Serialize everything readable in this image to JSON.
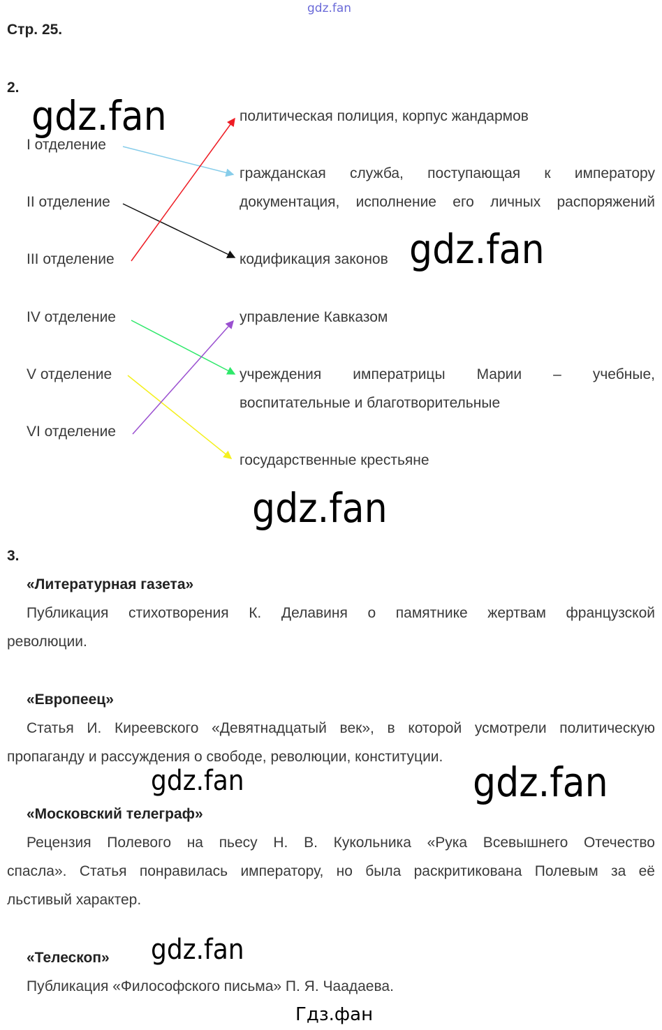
{
  "header": {
    "page_label": "Стр. 25.",
    "watermark_top": "gdz.fan"
  },
  "task2": {
    "number": "2.",
    "left": [
      "I отделение",
      "II отделение",
      "III отделение",
      "IV отделение",
      "V отделение",
      "VI отделение"
    ],
    "right": {
      "r1": "политическая полиция, корпус жандармов",
      "r2_line1": "гражданская служба, поступающая к императору",
      "r2_line2": "документация, исполнение его личных распоряжений",
      "r3": "кодификация законов",
      "r4": "управление Кавказом",
      "r5_line1": "учреждения императрицы Марии – учебные,",
      "r5_line2": "воспитательные и благотворительные",
      "r6": "государственные крестьяне"
    },
    "arrow_colors": {
      "I": "#87cdea",
      "II": "#111111",
      "III": "#ee1c24",
      "IV": "#2ee86a",
      "V": "#f4f01e",
      "VI": "#9a4fd0"
    }
  },
  "task3": {
    "number": "3.",
    "items": [
      {
        "title": "«Литературная газета»",
        "line1": "Публикация стихотворения К. Делавиня о памятнике жертвам французской",
        "line2": "революции."
      },
      {
        "title": "«Европеец»",
        "line1": "Статья И. Киреевского «Девятнадцатый век», в которой усмотрели политическую",
        "line2": "пропаганду и рассуждения о свободе, революции, конституции."
      },
      {
        "title": "«Московский телеграф»",
        "line1": "Рецензия Полевого на пьесу Н. В. Кукольника «Рука Всевышнего Отечество",
        "line2": "спасла». Статья понравилась императору, но была раскритикована Полевым за её",
        "line3": "льстивый характер."
      },
      {
        "title": "«Телескоп»",
        "line1": "Публикация «Философского письма» П. Я. Чаадаева."
      }
    ]
  },
  "watermarks": {
    "main": "gdz.fan",
    "footer": "Гдз.фан"
  }
}
